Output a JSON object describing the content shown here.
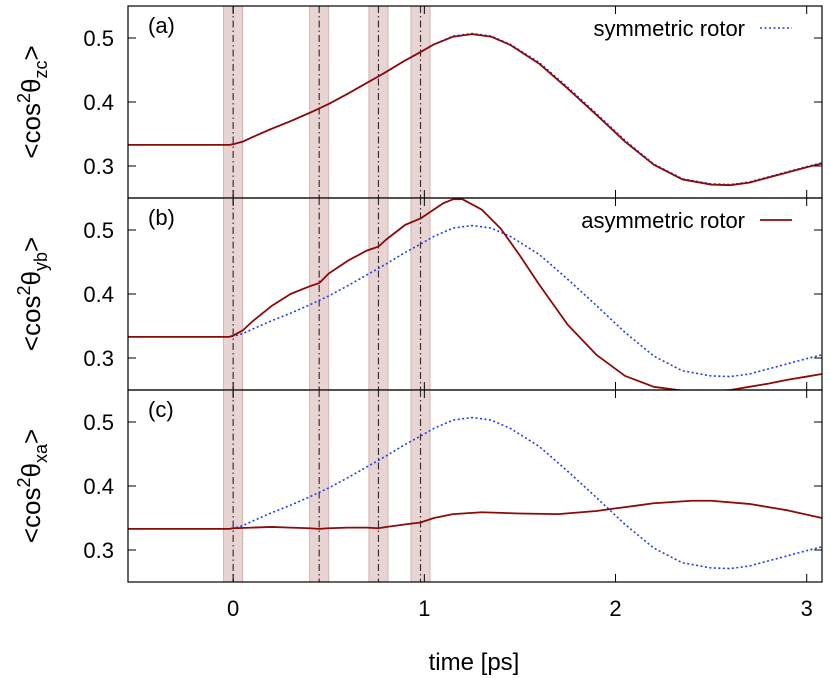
{
  "chart_data": {
    "type": "line",
    "xlabel": "time [ps]",
    "xlim": [
      -0.55,
      3.08
    ],
    "x_ticks": [
      0,
      1,
      2,
      3
    ],
    "x_tick_labels": [
      "0",
      "1",
      "2",
      "3"
    ],
    "pulse_times": [
      0.0,
      0.45,
      0.76,
      0.98
    ],
    "pulse_band_halfwidth": 0.05,
    "colors": {
      "symmetric": "#1f3fe0",
      "asymmetric": "#8b0a0a",
      "band": "#e8d4d2",
      "pulse_line": "#333333"
    },
    "panels": [
      {
        "label": "(a)",
        "ylabel": {
          "main": "<cos",
          "sup": "2",
          "theta": "θ",
          "sub": "zc",
          "close": ">"
        },
        "ylim": [
          0.25,
          0.55
        ],
        "y_ticks": [
          0.3,
          0.4,
          0.5
        ],
        "y_tick_labels": [
          "0.3",
          "0.4",
          "0.5"
        ],
        "legend": {
          "name": "symmetric rotor",
          "series": "symmetric",
          "position": "top-right"
        },
        "series": [
          {
            "key": "symmetric",
            "style": "dotted",
            "x": [
              -0.55,
              -0.02,
              0.0,
              0.05,
              0.1,
              0.2,
              0.3,
              0.4,
              0.45,
              0.5,
              0.6,
              0.7,
              0.76,
              0.8,
              0.9,
              0.98,
              1.05,
              1.15,
              1.25,
              1.35,
              1.45,
              1.6,
              1.75,
              1.9,
              2.05,
              2.2,
              2.35,
              2.5,
              2.6,
              2.7,
              2.8,
              2.9,
              3.0,
              3.08
            ],
            "values": [
              0.333,
              0.333,
              0.334,
              0.338,
              0.345,
              0.358,
              0.37,
              0.383,
              0.39,
              0.397,
              0.413,
              0.43,
              0.44,
              0.447,
              0.465,
              0.478,
              0.49,
              0.503,
              0.507,
              0.503,
              0.49,
              0.462,
              0.423,
              0.382,
              0.34,
              0.303,
              0.28,
              0.272,
              0.271,
              0.275,
              0.283,
              0.291,
              0.299,
              0.305
            ]
          },
          {
            "key": "asymmetric",
            "style": "solid",
            "x": [
              -0.55,
              -0.02,
              0.0,
              0.05,
              0.1,
              0.2,
              0.3,
              0.4,
              0.45,
              0.5,
              0.6,
              0.7,
              0.76,
              0.8,
              0.9,
              0.98,
              1.05,
              1.15,
              1.25,
              1.35,
              1.45,
              1.6,
              1.75,
              1.9,
              2.05,
              2.2,
              2.35,
              2.5,
              2.6,
              2.7,
              2.8,
              2.9,
              3.0,
              3.08
            ],
            "values": [
              0.333,
              0.333,
              0.334,
              0.338,
              0.345,
              0.358,
              0.37,
              0.383,
              0.39,
              0.397,
              0.413,
              0.43,
              0.44,
              0.447,
              0.465,
              0.478,
              0.49,
              0.502,
              0.506,
              0.502,
              0.489,
              0.46,
              0.421,
              0.38,
              0.338,
              0.302,
              0.279,
              0.271,
              0.27,
              0.274,
              0.282,
              0.29,
              0.298,
              0.304
            ]
          }
        ]
      },
      {
        "label": "(b)",
        "ylabel": {
          "main": "<cos",
          "sup": "2",
          "theta": "θ",
          "sub": "yb",
          "close": ">"
        },
        "ylim": [
          0.25,
          0.55
        ],
        "y_ticks": [
          0.3,
          0.4,
          0.5
        ],
        "y_tick_labels": [
          "0.3",
          "0.4",
          "0.5"
        ],
        "legend": {
          "name": "asymmetric rotor",
          "series": "asymmetric",
          "position": "top-right"
        },
        "series": [
          {
            "key": "symmetric",
            "style": "dotted",
            "x": [
              -0.55,
              -0.02,
              0.0,
              0.05,
              0.1,
              0.2,
              0.3,
              0.4,
              0.45,
              0.5,
              0.6,
              0.7,
              0.76,
              0.8,
              0.9,
              0.98,
              1.05,
              1.15,
              1.25,
              1.35,
              1.45,
              1.6,
              1.75,
              1.9,
              2.05,
              2.2,
              2.35,
              2.5,
              2.6,
              2.7,
              2.8,
              2.9,
              3.0,
              3.08
            ],
            "values": [
              0.333,
              0.333,
              0.334,
              0.338,
              0.345,
              0.358,
              0.37,
              0.383,
              0.39,
              0.397,
              0.413,
              0.43,
              0.44,
              0.447,
              0.465,
              0.478,
              0.49,
              0.503,
              0.507,
              0.503,
              0.49,
              0.462,
              0.423,
              0.382,
              0.34,
              0.303,
              0.28,
              0.272,
              0.271,
              0.275,
              0.283,
              0.291,
              0.299,
              0.305
            ]
          },
          {
            "key": "asymmetric",
            "style": "solid",
            "x": [
              -0.55,
              -0.02,
              0.0,
              0.05,
              0.1,
              0.2,
              0.3,
              0.4,
              0.45,
              0.5,
              0.6,
              0.7,
              0.76,
              0.8,
              0.9,
              0.98,
              1.05,
              1.1,
              1.15,
              1.2,
              1.3,
              1.4,
              1.5,
              1.6,
              1.75,
              1.9,
              2.05,
              2.2,
              2.35,
              2.5,
              2.6,
              2.7,
              2.8,
              2.9,
              3.0,
              3.08
            ],
            "values": [
              0.333,
              0.333,
              0.335,
              0.343,
              0.357,
              0.381,
              0.4,
              0.412,
              0.417,
              0.432,
              0.452,
              0.468,
              0.474,
              0.485,
              0.508,
              0.518,
              0.532,
              0.542,
              0.548,
              0.548,
              0.532,
              0.502,
              0.46,
              0.415,
              0.352,
              0.305,
              0.272,
              0.255,
              0.249,
              0.248,
              0.25,
              0.255,
              0.26,
              0.266,
              0.271,
              0.275
            ]
          }
        ]
      },
      {
        "label": "(c)",
        "ylabel": {
          "main": "<cos",
          "sup": "2",
          "theta": "θ",
          "sub": "xa",
          "close": ">"
        },
        "ylim": [
          0.25,
          0.55
        ],
        "y_ticks": [
          0.3,
          0.4,
          0.5
        ],
        "y_tick_labels": [
          "0.3",
          "0.4",
          "0.5"
        ],
        "legend": null,
        "series": [
          {
            "key": "symmetric",
            "style": "dotted",
            "x": [
              -0.55,
              -0.02,
              0.0,
              0.05,
              0.1,
              0.2,
              0.3,
              0.4,
              0.45,
              0.5,
              0.6,
              0.7,
              0.76,
              0.8,
              0.9,
              0.98,
              1.05,
              1.15,
              1.25,
              1.35,
              1.45,
              1.6,
              1.75,
              1.9,
              2.05,
              2.2,
              2.35,
              2.5,
              2.6,
              2.7,
              2.8,
              2.9,
              3.0,
              3.08
            ],
            "values": [
              0.333,
              0.333,
              0.334,
              0.338,
              0.345,
              0.358,
              0.37,
              0.383,
              0.39,
              0.397,
              0.413,
              0.43,
              0.44,
              0.447,
              0.465,
              0.478,
              0.49,
              0.503,
              0.507,
              0.503,
              0.49,
              0.462,
              0.423,
              0.382,
              0.34,
              0.303,
              0.28,
              0.272,
              0.271,
              0.275,
              0.283,
              0.291,
              0.299,
              0.305
            ]
          },
          {
            "key": "asymmetric",
            "style": "solid",
            "x": [
              -0.55,
              -0.02,
              0.0,
              0.1,
              0.2,
              0.3,
              0.4,
              0.45,
              0.5,
              0.6,
              0.7,
              0.76,
              0.8,
              0.9,
              0.98,
              1.05,
              1.15,
              1.3,
              1.5,
              1.7,
              1.9,
              2.0,
              2.2,
              2.4,
              2.5,
              2.7,
              2.9,
              3.08
            ],
            "values": [
              0.333,
              0.333,
              0.334,
              0.335,
              0.336,
              0.335,
              0.334,
              0.333,
              0.334,
              0.335,
              0.335,
              0.334,
              0.336,
              0.34,
              0.343,
              0.35,
              0.356,
              0.359,
              0.357,
              0.356,
              0.361,
              0.365,
              0.373,
              0.377,
              0.377,
              0.372,
              0.362,
              0.35
            ]
          }
        ]
      }
    ]
  }
}
